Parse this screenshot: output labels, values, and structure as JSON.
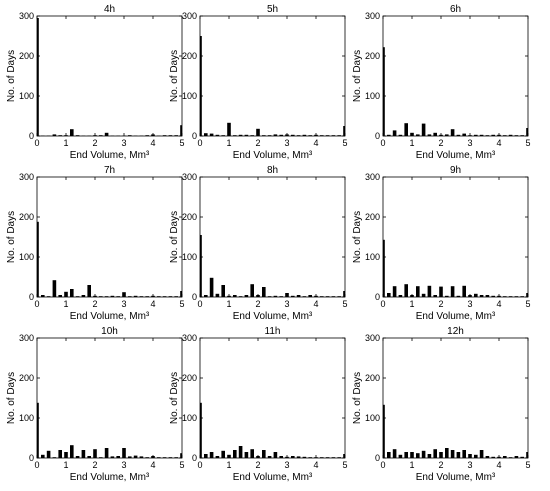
{
  "chart_data": [
    {
      "type": "bar",
      "title": "4h",
      "xlabel": "End Volume, Mm³",
      "ylabel": "No. of Days",
      "xlim": [
        0,
        5
      ],
      "ylim": [
        0,
        300
      ],
      "xticks": [
        "0",
        "1",
        "2",
        "3",
        "4",
        "5"
      ],
      "yticks": [
        "0",
        "100",
        "200",
        "300"
      ],
      "bin_width": 0.2,
      "grid": false,
      "x": [
        0,
        0.2,
        0.4,
        0.6,
        0.8,
        1,
        1.2,
        1.4,
        1.6,
        1.8,
        2,
        2.2,
        2.4,
        2.6,
        2.8,
        3,
        3.2,
        3.4,
        3.6,
        3.8,
        4,
        4.2,
        4.4,
        4.6,
        4.8,
        5
      ],
      "values": [
        295,
        1,
        1,
        4,
        2,
        2,
        17,
        2,
        1,
        1,
        2,
        2,
        8,
        1,
        1,
        1,
        2,
        1,
        1,
        2,
        4,
        1,
        2,
        2,
        2,
        27
      ]
    },
    {
      "type": "bar",
      "title": "5h",
      "xlabel": "End Volume, Mm³",
      "ylabel": "No. of Days",
      "xlim": [
        0,
        5
      ],
      "ylim": [
        0,
        300
      ],
      "xticks": [
        "0",
        "1",
        "2",
        "3",
        "4",
        "5"
      ],
      "yticks": [
        "0",
        "100",
        "200",
        "300"
      ],
      "bin_width": 0.2,
      "grid": false,
      "x": [
        0,
        0.2,
        0.4,
        0.6,
        0.8,
        1,
        1.2,
        1.4,
        1.6,
        1.8,
        2,
        2.2,
        2.4,
        2.6,
        2.8,
        3,
        3.2,
        3.4,
        3.6,
        3.8,
        4,
        4.2,
        4.4,
        4.6,
        4.8,
        5
      ],
      "values": [
        250,
        7,
        6,
        3,
        2,
        33,
        2,
        3,
        3,
        2,
        18,
        2,
        2,
        4,
        3,
        4,
        3,
        2,
        3,
        2,
        3,
        2,
        2,
        2,
        2,
        25
      ]
    },
    {
      "type": "bar",
      "title": "6h",
      "xlabel": "End Volume, Mm³",
      "ylabel": "No. of Days",
      "xlim": [
        0,
        5
      ],
      "ylim": [
        0,
        300
      ],
      "xticks": [
        "0",
        "1",
        "2",
        "3",
        "4",
        "5"
      ],
      "yticks": [
        "0",
        "100",
        "200",
        "300"
      ],
      "bin_width": 0.2,
      "grid": false,
      "x": [
        0,
        0.2,
        0.4,
        0.6,
        0.8,
        1,
        1.2,
        1.4,
        1.6,
        1.8,
        2,
        2.2,
        2.4,
        2.6,
        2.8,
        3,
        3.2,
        3.4,
        3.6,
        3.8,
        4,
        4.2,
        4.4,
        4.6,
        4.8,
        5
      ],
      "values": [
        222,
        3,
        14,
        3,
        32,
        8,
        4,
        31,
        4,
        8,
        3,
        4,
        17,
        3,
        6,
        2,
        3,
        3,
        2,
        3,
        3,
        2,
        3,
        2,
        2,
        20
      ]
    },
    {
      "type": "bar",
      "title": "7h",
      "xlabel": "End Volume, Mm³",
      "ylabel": "No. of Days",
      "xlim": [
        0,
        5
      ],
      "ylim": [
        0,
        300
      ],
      "xticks": [
        "0",
        "1",
        "2",
        "3",
        "4",
        "5"
      ],
      "yticks": [
        "0",
        "100",
        "200",
        "300"
      ],
      "bin_width": 0.2,
      "grid": false,
      "x": [
        0,
        0.2,
        0.4,
        0.6,
        0.8,
        1,
        1.2,
        1.4,
        1.6,
        1.8,
        2,
        2.2,
        2.4,
        2.6,
        2.8,
        3,
        3.2,
        3.4,
        3.6,
        3.8,
        4,
        4.2,
        4.4,
        4.6,
        4.8,
        5
      ],
      "values": [
        188,
        5,
        2,
        42,
        5,
        13,
        20,
        2,
        5,
        30,
        3,
        2,
        2,
        3,
        2,
        12,
        2,
        3,
        2,
        2,
        3,
        2,
        2,
        2,
        2,
        15
      ]
    },
    {
      "type": "bar",
      "title": "8h",
      "xlabel": "End Volume, Mm³",
      "ylabel": "No. of Days",
      "xlim": [
        0,
        5
      ],
      "ylim": [
        0,
        300
      ],
      "xticks": [
        "0",
        "1",
        "2",
        "3",
        "4",
        "5"
      ],
      "yticks": [
        "0",
        "100",
        "200",
        "300"
      ],
      "bin_width": 0.2,
      "grid": false,
      "x": [
        0,
        0.2,
        0.4,
        0.6,
        0.8,
        1,
        1.2,
        1.4,
        1.6,
        1.8,
        2,
        2.2,
        2.4,
        2.6,
        2.8,
        3,
        3.2,
        3.4,
        3.6,
        3.8,
        4,
        4.2,
        4.4,
        4.6,
        4.8,
        5
      ],
      "values": [
        155,
        5,
        48,
        8,
        30,
        3,
        5,
        2,
        5,
        32,
        5,
        25,
        2,
        3,
        2,
        10,
        3,
        5,
        2,
        5,
        3,
        2,
        2,
        2,
        2,
        15
      ]
    },
    {
      "type": "bar",
      "title": "9h",
      "xlabel": "End Volume, Mm³",
      "ylabel": "No. of Days",
      "xlim": [
        0,
        5
      ],
      "ylim": [
        0,
        300
      ],
      "xticks": [
        "0",
        "1",
        "2",
        "3",
        "4",
        "5"
      ],
      "yticks": [
        "0",
        "100",
        "200",
        "300"
      ],
      "bin_width": 0.2,
      "grid": false,
      "x": [
        0,
        0.2,
        0.4,
        0.6,
        0.8,
        1,
        1.2,
        1.4,
        1.6,
        1.8,
        2,
        2.2,
        2.4,
        2.6,
        2.8,
        3,
        3.2,
        3.4,
        3.6,
        3.8,
        4,
        4.2,
        4.4,
        4.6,
        4.8,
        5
      ],
      "values": [
        143,
        10,
        27,
        5,
        32,
        5,
        27,
        8,
        28,
        5,
        26,
        3,
        27,
        3,
        28,
        5,
        8,
        5,
        5,
        3,
        3,
        2,
        2,
        2,
        2,
        10
      ]
    },
    {
      "type": "bar",
      "title": "10h",
      "xlabel": "End Volume, Mm³",
      "ylabel": "No. of Days",
      "xlim": [
        0,
        5
      ],
      "ylim": [
        0,
        300
      ],
      "xticks": [
        "0",
        "1",
        "2",
        "3",
        "4",
        "5"
      ],
      "yticks": [
        "0",
        "100",
        "200",
        "300"
      ],
      "bin_width": 0.2,
      "grid": false,
      "x": [
        0,
        0.2,
        0.4,
        0.6,
        0.8,
        1,
        1.2,
        1.4,
        1.6,
        1.8,
        2,
        2.2,
        2.4,
        2.6,
        2.8,
        3,
        3.2,
        3.4,
        3.6,
        3.8,
        4,
        4.2,
        4.4,
        4.6,
        4.8,
        5
      ],
      "values": [
        138,
        8,
        18,
        2,
        20,
        15,
        32,
        5,
        20,
        5,
        22,
        2,
        25,
        4,
        5,
        25,
        4,
        6,
        4,
        2,
        5,
        2,
        2,
        2,
        2,
        12
      ]
    },
    {
      "type": "bar",
      "title": "11h",
      "xlabel": "End Volume, Mm³",
      "ylabel": "No. of Days",
      "xlim": [
        0,
        5
      ],
      "ylim": [
        0,
        300
      ],
      "xticks": [
        "0",
        "1",
        "2",
        "3",
        "4",
        "5"
      ],
      "yticks": [
        "0",
        "100",
        "200",
        "300"
      ],
      "bin_width": 0.2,
      "grid": false,
      "x": [
        0,
        0.2,
        0.4,
        0.6,
        0.8,
        1,
        1.2,
        1.4,
        1.6,
        1.8,
        2,
        2.2,
        2.4,
        2.6,
        2.8,
        3,
        3.2,
        3.4,
        3.6,
        3.8,
        4,
        4.2,
        4.4,
        4.6,
        4.8,
        5
      ],
      "values": [
        138,
        10,
        15,
        5,
        18,
        8,
        20,
        30,
        15,
        22,
        5,
        20,
        5,
        15,
        5,
        3,
        5,
        4,
        3,
        2,
        2,
        2,
        2,
        2,
        2,
        10
      ]
    },
    {
      "type": "bar",
      "title": "12h",
      "xlabel": "End Volume, Mm³",
      "ylabel": "No. of Days",
      "xlim": [
        0,
        5
      ],
      "ylim": [
        0,
        300
      ],
      "xticks": [
        "0",
        "1",
        "2",
        "3",
        "4",
        "5"
      ],
      "yticks": [
        "0",
        "100",
        "200",
        "300"
      ],
      "bin_width": 0.2,
      "grid": false,
      "x": [
        0,
        0.2,
        0.4,
        0.6,
        0.8,
        1,
        1.2,
        1.4,
        1.6,
        1.8,
        2,
        2.2,
        2.4,
        2.6,
        2.8,
        3,
        3.2,
        3.4,
        3.6,
        3.8,
        4,
        4.2,
        4.4,
        4.6,
        4.8,
        5
      ],
      "values": [
        133,
        15,
        22,
        8,
        15,
        15,
        12,
        18,
        10,
        22,
        15,
        25,
        20,
        15,
        20,
        10,
        8,
        20,
        5,
        3,
        3,
        5,
        2,
        5,
        3,
        15
      ]
    }
  ],
  "colors": {
    "bar": "#000000",
    "axis": "#000000",
    "background": "#ffffff"
  }
}
